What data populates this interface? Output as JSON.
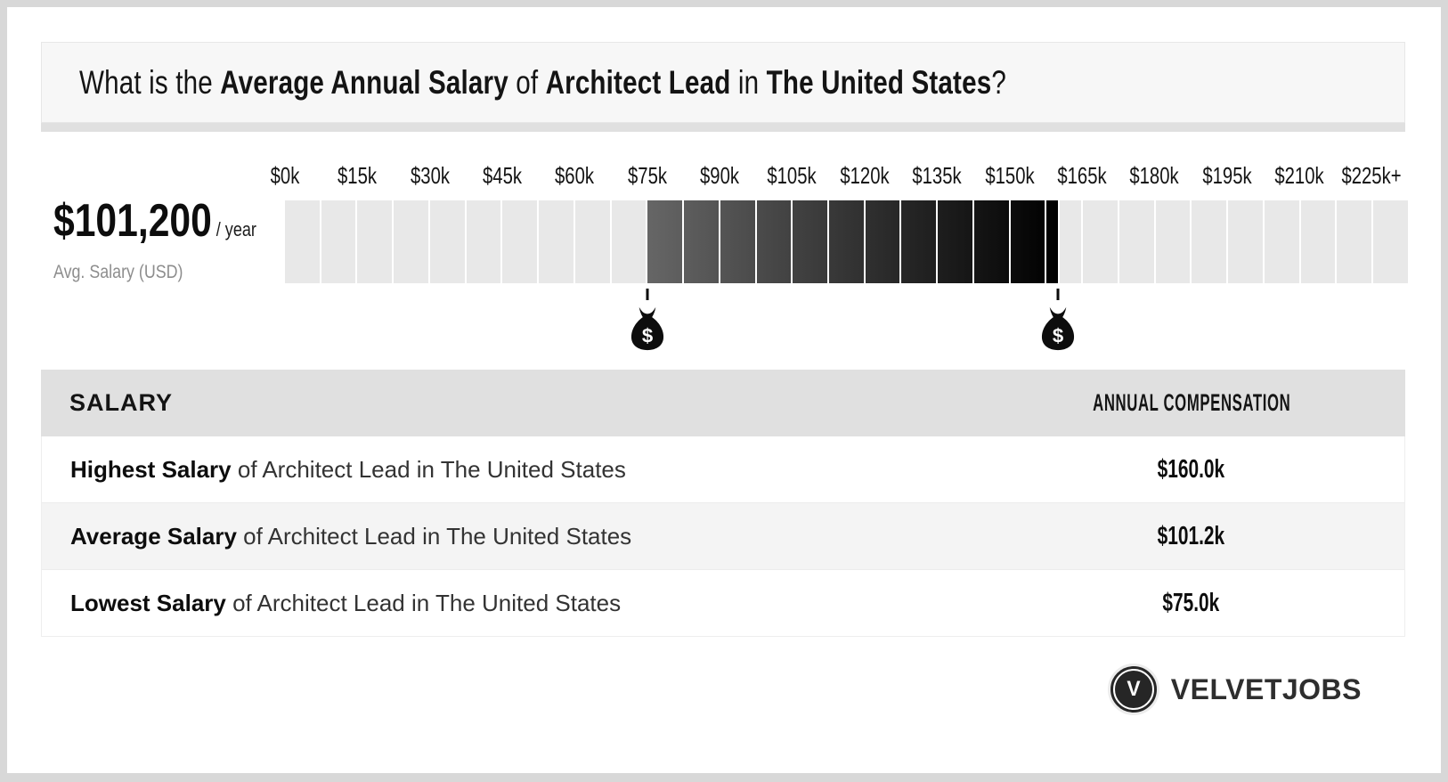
{
  "question": {
    "t1": "What is the ",
    "b1": "Average Annual Salary",
    "t2": " of ",
    "b2": "Architect Lead",
    "t3": " in ",
    "b3": "The United States",
    "t4": "?"
  },
  "summary": {
    "amount": "$101,200",
    "per": "/ year",
    "caption": "Avg. Salary (USD)"
  },
  "scale": {
    "total_segments": 31,
    "empty_color": "#e8e8e8",
    "fill_start_color": "#666666",
    "fill_end_color": "#000000",
    "gap_color": "#ffffff",
    "marker_icon": "money-bag-icon",
    "marker_symbol": "$"
  },
  "chart_data": {
    "type": "bar",
    "title": "What is the Average Annual Salary of Architect Lead in The United States?",
    "x_tick_labels": [
      "$0k",
      "$15k",
      "$30k",
      "$45k",
      "$60k",
      "$75k",
      "$90k",
      "$105k",
      "$120k",
      "$135k",
      "$150k",
      "$165k",
      "$180k",
      "$195k",
      "$210k",
      "$225k+"
    ],
    "x_range_usd": [
      0,
      232500
    ],
    "bar_segment_usd": 7500,
    "highlighted_range_usd": [
      75000,
      160000
    ],
    "marker_values_usd": [
      75000,
      160000
    ],
    "average_salary_usd": 101200,
    "highest_salary_usd": 160000,
    "lowest_salary_usd": 75000,
    "grid": false,
    "legend_position": "none"
  },
  "table": {
    "col_salary": "SALARY",
    "col_compensation": "ANNUAL COMPENSATION",
    "rows": [
      {
        "label_bold": "Highest Salary",
        "label_rest": " of Architect Lead in The United States",
        "value": "$160.0k"
      },
      {
        "label_bold": "Average Salary",
        "label_rest": " of Architect Lead in The United States",
        "value": "$101.2k"
      },
      {
        "label_bold": "Lowest Salary",
        "label_rest": " of Architect Lead in The United States",
        "value": "$75.0k"
      }
    ]
  },
  "logo": {
    "monogram": "V",
    "name": "VELVETJOBS"
  }
}
